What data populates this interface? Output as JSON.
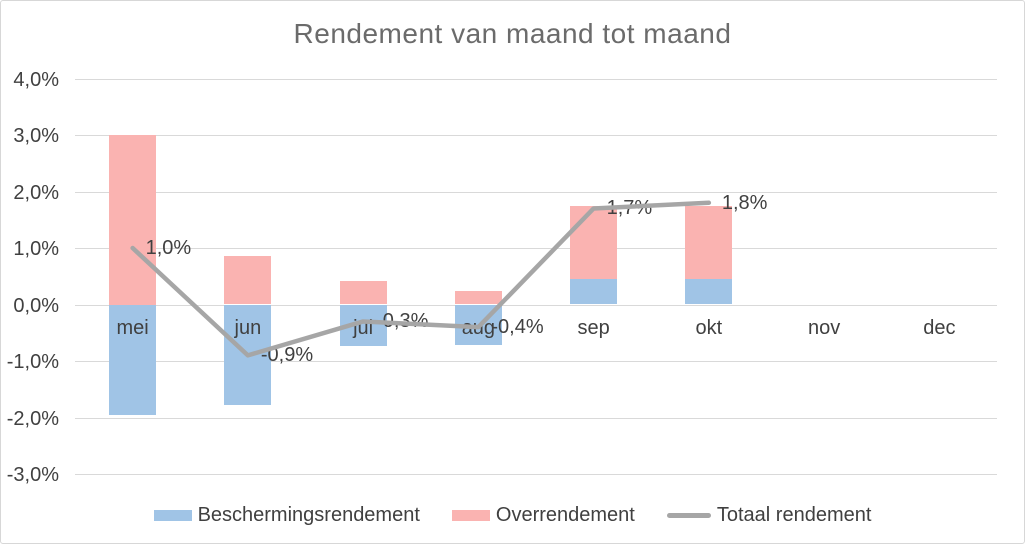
{
  "chart_data": {
    "type": "bar",
    "subtype": "stacked-column-with-line-overlay",
    "title": "Rendement van maand tot maand",
    "categories": [
      "mei",
      "jun",
      "jul",
      "aug",
      "sep",
      "okt",
      "nov",
      "dec"
    ],
    "series": [
      {
        "name": "Beschermingsrendement",
        "type": "bar",
        "color": "#A0C4E6",
        "values": [
          -1.95,
          -1.78,
          -0.73,
          -0.72,
          0.46,
          0.46,
          null,
          null
        ]
      },
      {
        "name": "Overrendement",
        "type": "bar",
        "color": "#FAB3B1",
        "values": [
          3.0,
          0.86,
          0.42,
          0.24,
          1.28,
          1.29,
          null,
          null
        ]
      },
      {
        "name": "Totaal rendement",
        "type": "line",
        "color": "#A6A6A6",
        "values": [
          1.0,
          -0.9,
          -0.3,
          -0.4,
          1.7,
          1.8,
          null,
          null
        ],
        "labels": [
          "1,0%",
          "-0,9%",
          "-0,3%",
          "-0,4%",
          "1,7%",
          "1,8%",
          null,
          null
        ]
      }
    ],
    "xlabel": "",
    "ylabel": "",
    "ylim": [
      -3.0,
      4.0
    ],
    "ytick_step": 1.0,
    "yticks": [
      "4,0%",
      "3,0%",
      "2,0%",
      "1,0%",
      "0,0%",
      "-1,0%",
      "-2,0%",
      "-3,0%"
    ],
    "value_unit": "percent",
    "grid": "horizontal-only",
    "legend_position": "bottom",
    "colors": {
      "gridline": "#D9D9D9",
      "axis_text": "#404040",
      "title_text": "#6b6b6b",
      "frame_border": "#D7D7D7",
      "background": "#ffffff"
    }
  }
}
